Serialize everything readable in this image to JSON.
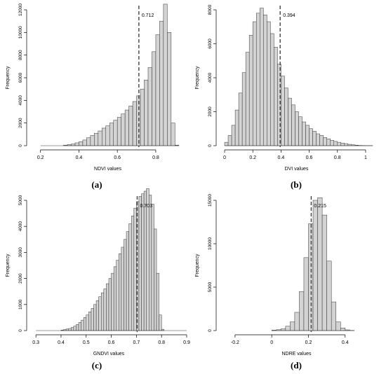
{
  "figure": {
    "panel_labels": [
      "(a)",
      "(b)",
      "(c)",
      "(d)"
    ]
  },
  "chart_data": [
    {
      "type": "bar",
      "panel": "(a)",
      "xlabel": "NDVI values",
      "ylabel": "Frequency",
      "bar_color": "#d3d3d3",
      "xlim": [
        0.15,
        0.95
      ],
      "ylim": [
        0,
        12000
      ],
      "xticks": [
        0.2,
        0.4,
        0.6,
        0.8
      ],
      "yticks": [
        0,
        2000,
        4000,
        6000,
        8000,
        10000,
        12000
      ],
      "bin_start": 0.2,
      "bin_width": 0.02,
      "values": [
        0,
        0,
        0,
        0,
        0,
        0,
        50,
        100,
        150,
        250,
        350,
        500,
        700,
        900,
        1100,
        1300,
        1550,
        1750,
        2000,
        2250,
        2500,
        2800,
        3150,
        3500,
        3900,
        4400,
        5000,
        5800,
        6900,
        8300,
        9800,
        11000,
        12500,
        10000,
        2000,
        50
      ],
      "reference_line": {
        "value": 0.712,
        "label": "0.712"
      },
      "grid": false
    },
    {
      "type": "bar",
      "panel": "(b)",
      "xlabel": "DVI values",
      "ylabel": "Frequency",
      "bar_color": "#d3d3d3",
      "xlim": [
        -0.03,
        1.05
      ],
      "ylim": [
        0,
        8000
      ],
      "xticks": [
        0.0,
        0.2,
        0.4,
        0.6,
        0.8,
        1.0
      ],
      "yticks": [
        0,
        2000,
        4000,
        6000,
        8000
      ],
      "bin_start": 0.0,
      "bin_width": 0.025,
      "values": [
        200,
        600,
        1200,
        2100,
        3100,
        4300,
        5500,
        6500,
        7300,
        7800,
        8100,
        7700,
        7300,
        6600,
        5800,
        4800,
        4100,
        3400,
        2800,
        2400,
        2000,
        1700,
        1400,
        1200,
        1000,
        850,
        700,
        600,
        480,
        400,
        320,
        250,
        200,
        150,
        120,
        80,
        50,
        30,
        15,
        10,
        5,
        5
      ],
      "reference_line": {
        "value": 0.394,
        "label": "0.394"
      },
      "grid": false
    },
    {
      "type": "bar",
      "panel": "(c)",
      "xlabel": "GNDVI values",
      "ylabel": "Frequency",
      "bar_color": "#d3d3d3",
      "xlim": [
        0.28,
        0.9
      ],
      "ylim": [
        0,
        5000
      ],
      "xticks": [
        0.3,
        0.4,
        0.5,
        0.6,
        0.7,
        0.8,
        0.9
      ],
      "yticks": [
        0,
        1000,
        2000,
        3000,
        4000,
        5000
      ],
      "bin_start": 0.3,
      "bin_width": 0.01,
      "values": [
        0,
        0,
        0,
        0,
        0,
        0,
        0,
        0,
        0,
        0,
        20,
        40,
        60,
        80,
        120,
        170,
        230,
        310,
        400,
        500,
        600,
        720,
        850,
        1000,
        1150,
        1300,
        1450,
        1600,
        1800,
        2000,
        2200,
        2450,
        2700,
        2950,
        3200,
        3500,
        3800,
        4100,
        4400,
        4700,
        4950,
        5150,
        5250,
        5350,
        5450,
        5200,
        4850,
        3900,
        2200,
        600,
        50,
        0,
        0,
        0,
        0,
        0,
        0,
        0,
        0,
        0
      ],
      "reference_line": {
        "value": 0.703,
        "label": "0.703"
      },
      "grid": false
    },
    {
      "type": "bar",
      "panel": "(d)",
      "xlabel": "NDRE values",
      "ylabel": "Frequency",
      "bar_color": "#d3d3d3",
      "xlim": [
        -0.28,
        0.55
      ],
      "ylim": [
        0,
        15000
      ],
      "xticks": [
        -0.2,
        0.0,
        0.2,
        0.4
      ],
      "yticks": [
        0,
        5000,
        10000,
        15000
      ],
      "bin_start": 0.0,
      "bin_width": 0.025,
      "values": [
        50,
        100,
        200,
        500,
        1000,
        2100,
        4500,
        8400,
        12300,
        15000,
        15300,
        13300,
        8000,
        3300,
        1000,
        300,
        80,
        20
      ],
      "reference_line": {
        "value": 0.215,
        "label": "0.215"
      },
      "grid": false
    }
  ]
}
